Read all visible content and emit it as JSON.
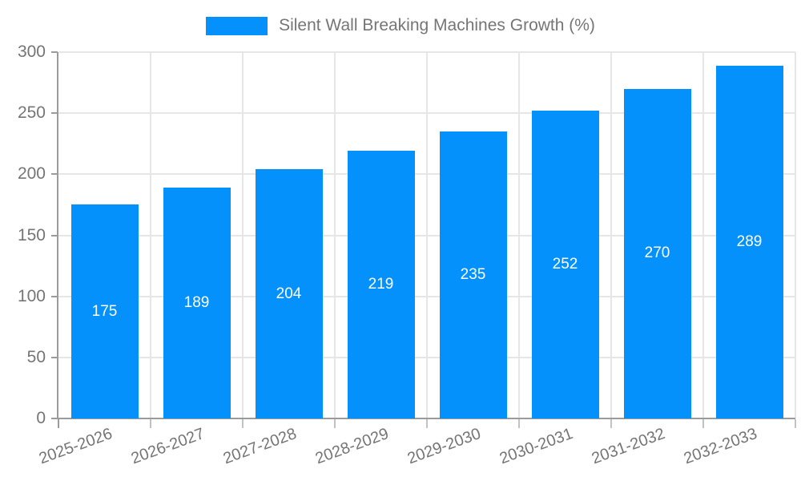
{
  "legend": {
    "label": "Silent Wall Breaking Machines Growth (%)"
  },
  "colors": {
    "bar": "#0591FB",
    "grid_line": "#e6e6e6",
    "axis_line": "#9b9b9b",
    "tick_mark": "#c2c2c2",
    "tick_text": "#757575",
    "value_label_text": "#ffffff",
    "background": "#ffffff"
  },
  "chart_data": {
    "type": "bar",
    "title": "",
    "legend": [
      "Silent Wall Breaking Machines Growth (%)"
    ],
    "legend_position": "top-center",
    "categories": [
      "2025-2026",
      "2026-2027",
      "2027-2028",
      "2028-2029",
      "2029-2030",
      "2030-2031",
      "2031-2032",
      "2032-2033"
    ],
    "values": [
      175,
      189,
      204,
      219,
      235,
      252,
      270,
      289
    ],
    "xlabel": "",
    "ylabel": "",
    "ylim": [
      0,
      300
    ],
    "yticks": [
      0,
      50,
      100,
      150,
      200,
      250,
      300
    ],
    "grid": true,
    "x_tick_rotation_deg": -20,
    "value_labels_position": "inside-center",
    "bar_color": "#0591FB"
  }
}
